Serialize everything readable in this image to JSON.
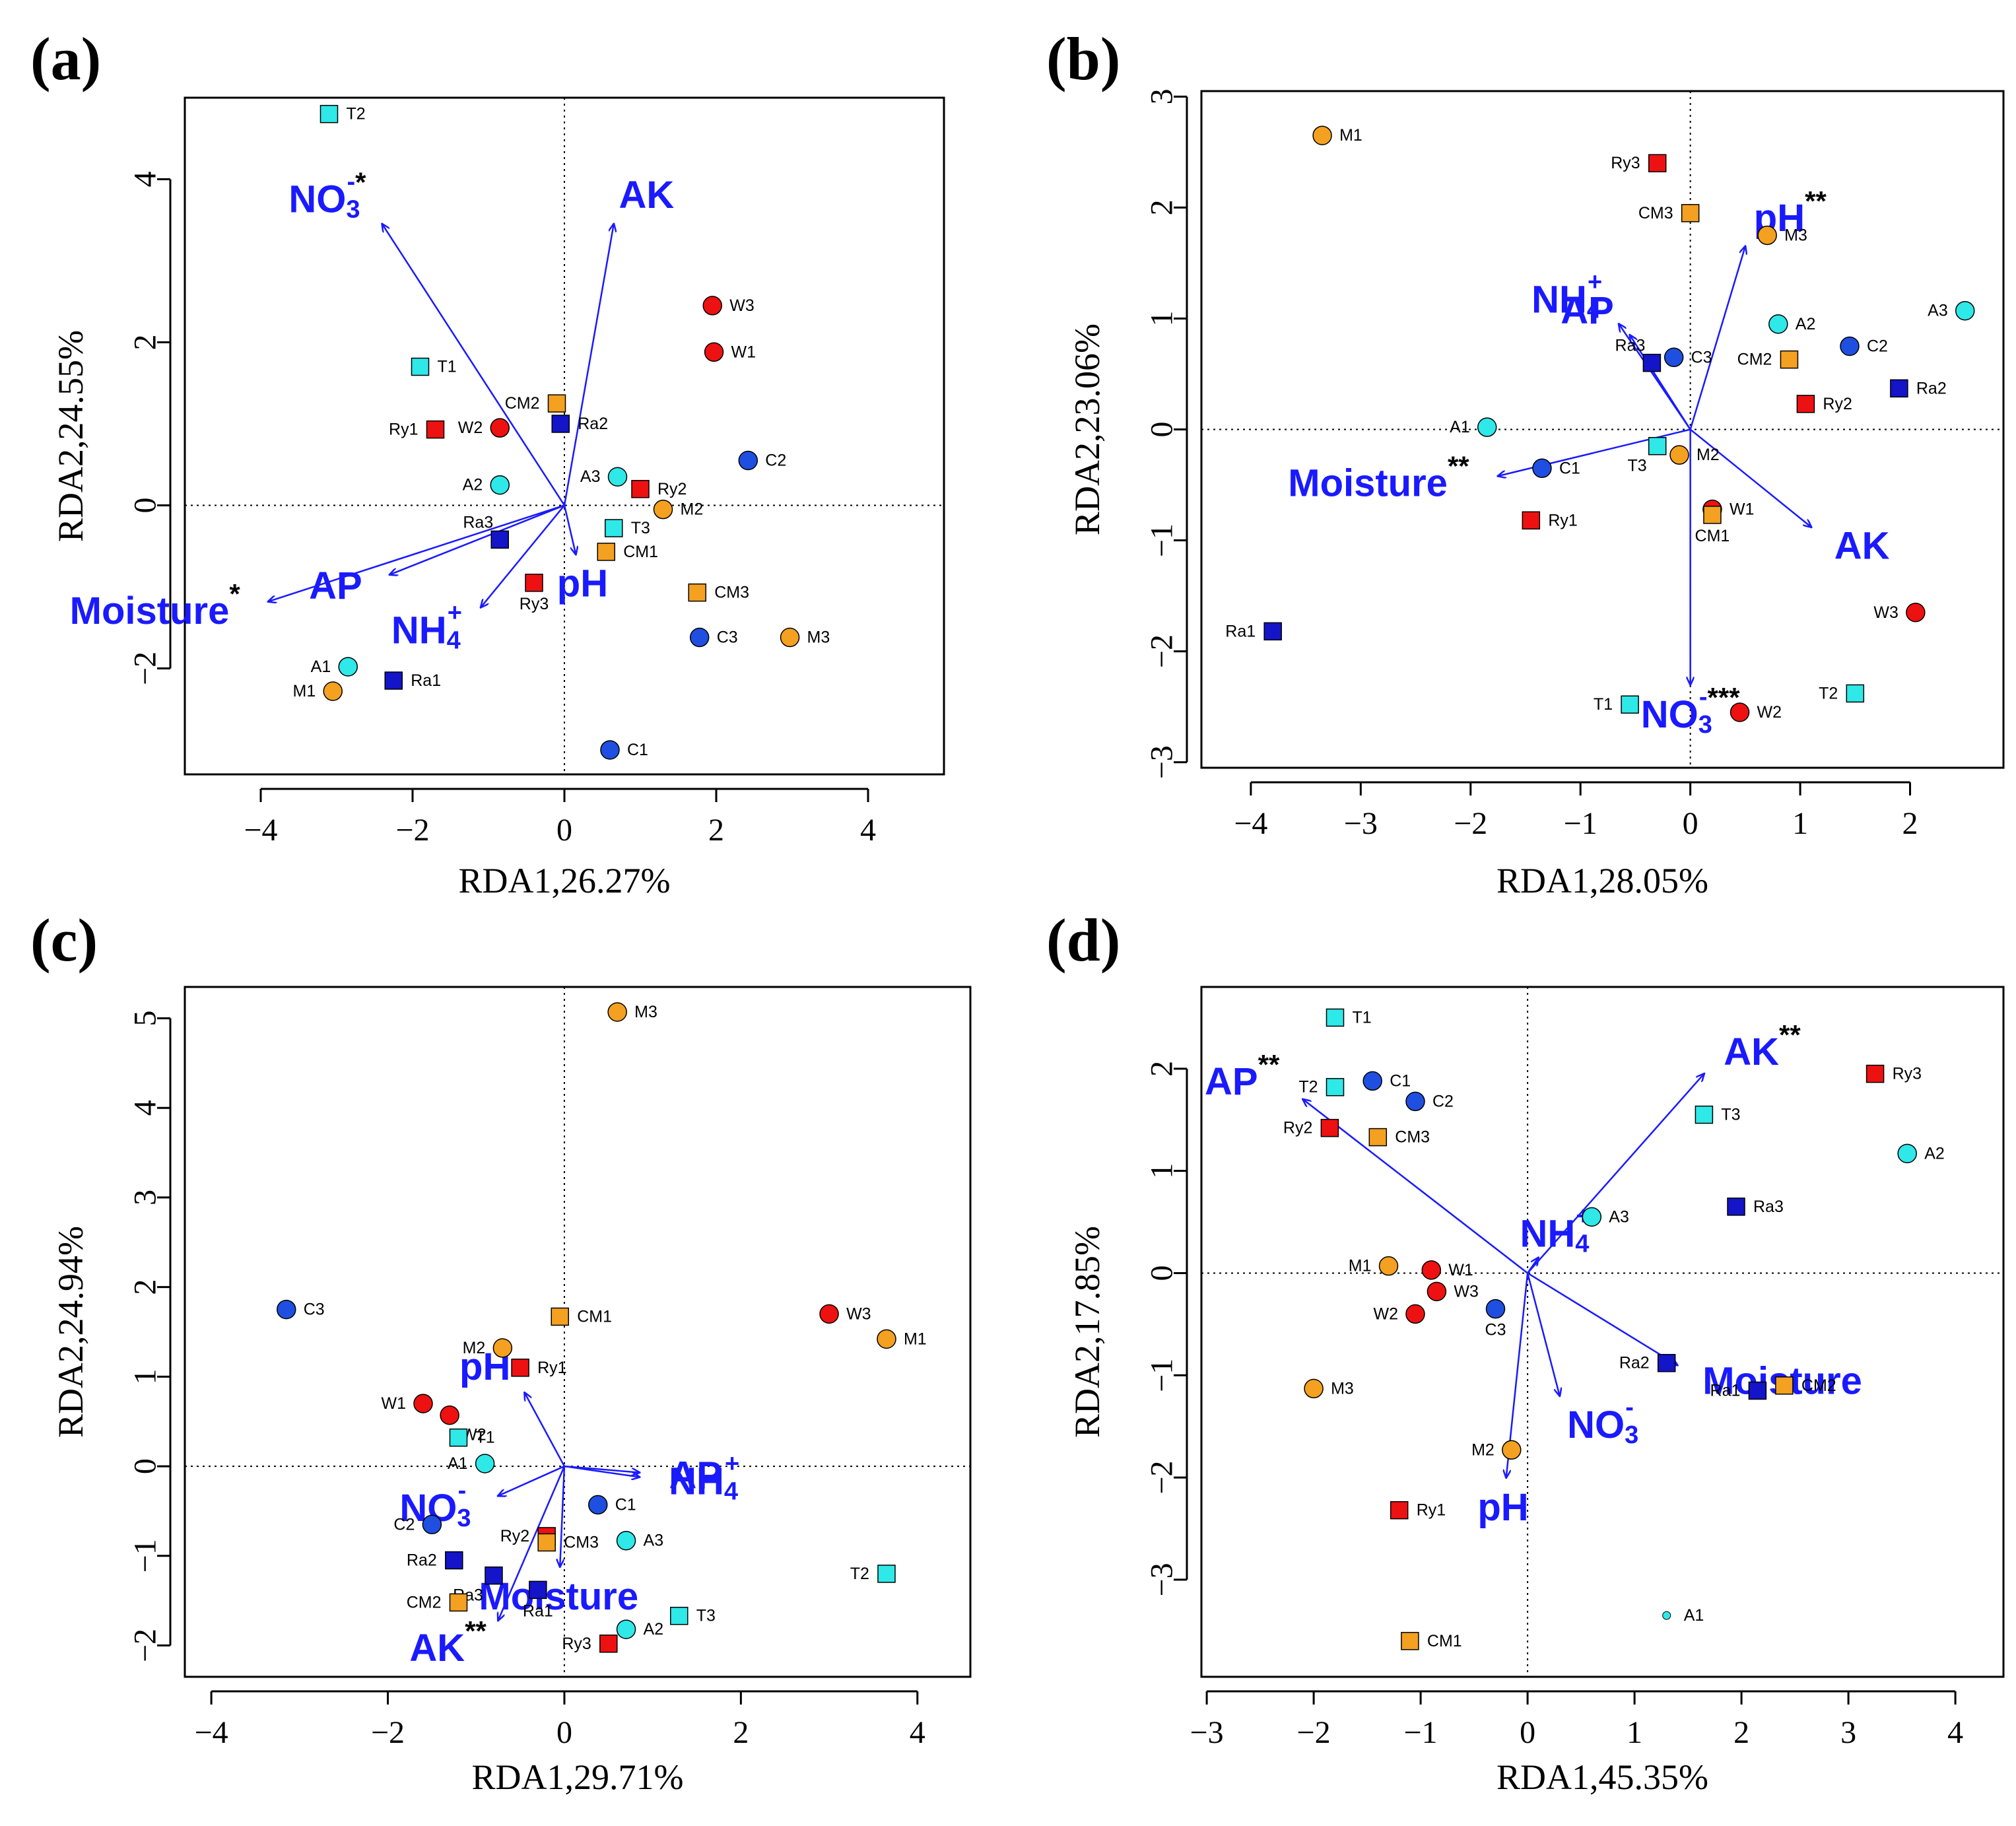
{
  "colors": {
    "frame": "#000000",
    "arrow": "#1a1aff",
    "env_text": "#1a1aff",
    "W": "#ee1111",
    "Ry": "#ee1111",
    "C": "#1f4fe0",
    "Ra": "#1414c8",
    "A": "#2fe8e8",
    "T": "#2fe8e8",
    "M": "#f4a020",
    "CM": "#f4a020"
  },
  "chart_data": [
    {
      "panel": "(a)",
      "type": "scatter",
      "xlabel": "RDA1,26.27%",
      "ylabel": "RDA2,24.55%",
      "xlim": [
        -5,
        5
      ],
      "ylim": [
        -3.3,
        5
      ],
      "xticks": [
        -4,
        -2,
        0,
        2,
        4
      ],
      "yticks": [
        -2,
        0,
        2,
        4
      ],
      "points": [
        {
          "label": "T2",
          "x": -3.1,
          "y": 4.8,
          "shape": "square",
          "group": "T"
        },
        {
          "label": "T1",
          "x": -1.9,
          "y": 1.7,
          "shape": "square",
          "group": "T"
        },
        {
          "label": "T3",
          "x": 0.65,
          "y": -0.28,
          "shape": "square",
          "group": "T"
        },
        {
          "label": "W3",
          "x": 1.95,
          "y": 2.45,
          "shape": "circle",
          "group": "W"
        },
        {
          "label": "W1",
          "x": 1.97,
          "y": 1.88,
          "shape": "circle",
          "group": "W"
        },
        {
          "label": "W2",
          "x": -0.85,
          "y": 0.95,
          "shape": "circle",
          "group": "W"
        },
        {
          "label": "CM2",
          "x": -0.1,
          "y": 1.25,
          "shape": "square",
          "group": "CM"
        },
        {
          "label": "Ra2",
          "x": -0.05,
          "y": 1.0,
          "shape": "square",
          "group": "Ra"
        },
        {
          "label": "Ry1",
          "x": -1.7,
          "y": 0.93,
          "shape": "square",
          "group": "Ry"
        },
        {
          "label": "C2",
          "x": 2.42,
          "y": 0.55,
          "shape": "circle",
          "group": "C"
        },
        {
          "label": "A2",
          "x": -0.85,
          "y": 0.25,
          "shape": "circle",
          "group": "A"
        },
        {
          "label": "A3",
          "x": 0.7,
          "y": 0.35,
          "shape": "circle",
          "group": "A"
        },
        {
          "label": "Ry2",
          "x": 1.0,
          "y": 0.2,
          "shape": "square",
          "group": "Ry"
        },
        {
          "label": "M2",
          "x": 1.3,
          "y": -0.05,
          "shape": "circle",
          "group": "M"
        },
        {
          "label": "Ra3",
          "x": -0.85,
          "y": -0.42,
          "shape": "square",
          "group": "Ra"
        },
        {
          "label": "CM1",
          "x": 0.55,
          "y": -0.57,
          "shape": "square",
          "group": "CM"
        },
        {
          "label": "Ry3",
          "x": -0.4,
          "y": -0.95,
          "shape": "square",
          "group": "Ry"
        },
        {
          "label": "CM3",
          "x": 1.75,
          "y": -1.07,
          "shape": "square",
          "group": "CM"
        },
        {
          "label": "C3",
          "x": 1.78,
          "y": -1.62,
          "shape": "circle",
          "group": "C"
        },
        {
          "label": "M3",
          "x": 2.97,
          "y": -1.62,
          "shape": "circle",
          "group": "M"
        },
        {
          "label": "A1",
          "x": -2.85,
          "y": -1.98,
          "shape": "circle",
          "group": "A"
        },
        {
          "label": "Ra1",
          "x": -2.25,
          "y": -2.15,
          "shape": "square",
          "group": "Ra"
        },
        {
          "label": "M1",
          "x": -3.05,
          "y": -2.28,
          "shape": "circle",
          "group": "M"
        },
        {
          "label": "C1",
          "x": 0.6,
          "y": -3.0,
          "shape": "circle",
          "group": "C"
        }
      ],
      "vectors": [
        {
          "name": "NO",
          "sub": "3",
          "sup": "-",
          "star": "*",
          "x": -2.4,
          "y": 3.45
        },
        {
          "name": "AK",
          "sub": "",
          "sup": "",
          "star": "",
          "x": 0.65,
          "y": 3.45
        },
        {
          "name": "Moisture",
          "sub": "",
          "sup": "",
          "star": "*",
          "x": -3.9,
          "y": -1.18
        },
        {
          "name": "AP",
          "sub": "",
          "sup": "",
          "star": "",
          "x": -2.3,
          "y": -0.85
        },
        {
          "name": "NH",
          "sub": "4",
          "sup": "+",
          "star": "",
          "x": -1.1,
          "y": -1.25
        },
        {
          "name": "pH",
          "sub": "",
          "sup": "",
          "star": "",
          "x": 0.15,
          "y": -0.6
        }
      ]
    },
    {
      "panel": "(b)",
      "type": "scatter",
      "xlabel": "RDA1,28.05%",
      "ylabel": "RDA2,23.06%",
      "xlim": [
        -4.45,
        2.85
      ],
      "ylim": [
        -3.05,
        3.05
      ],
      "xticks": [
        -4,
        -3,
        -2,
        -1,
        0,
        1,
        2
      ],
      "yticks": [
        -3,
        -2,
        -1,
        0,
        1,
        2,
        3
      ],
      "points": [
        {
          "label": "M1",
          "x": -3.35,
          "y": 2.65,
          "shape": "circle",
          "group": "M"
        },
        {
          "label": "Ry3",
          "x": -0.3,
          "y": 2.4,
          "shape": "square",
          "group": "Ry"
        },
        {
          "label": "CM3",
          "x": 0.0,
          "y": 1.95,
          "shape": "square",
          "group": "CM"
        },
        {
          "label": "M3",
          "x": 0.7,
          "y": 1.75,
          "shape": "circle",
          "group": "M"
        },
        {
          "label": "A3",
          "x": 2.5,
          "y": 1.07,
          "shape": "circle",
          "group": "A"
        },
        {
          "label": "A2",
          "x": 0.8,
          "y": 0.95,
          "shape": "circle",
          "group": "A"
        },
        {
          "label": "C2",
          "x": 1.45,
          "y": 0.75,
          "shape": "circle",
          "group": "C"
        },
        {
          "label": "CM2",
          "x": 0.9,
          "y": 0.63,
          "shape": "square",
          "group": "CM"
        },
        {
          "label": "Ra3",
          "x": -0.35,
          "y": 0.6,
          "shape": "square",
          "group": "Ra"
        },
        {
          "label": "C3",
          "x": -0.15,
          "y": 0.65,
          "shape": "circle",
          "group": "C"
        },
        {
          "label": "Ra2",
          "x": 1.9,
          "y": 0.37,
          "shape": "square",
          "group": "Ra"
        },
        {
          "label": "Ry2",
          "x": 1.05,
          "y": 0.23,
          "shape": "square",
          "group": "Ry"
        },
        {
          "label": "A1",
          "x": -1.85,
          "y": 0.02,
          "shape": "circle",
          "group": "A"
        },
        {
          "label": "T3",
          "x": -0.3,
          "y": -0.15,
          "shape": "square",
          "group": "T"
        },
        {
          "label": "M2",
          "x": -0.1,
          "y": -0.23,
          "shape": "circle",
          "group": "M"
        },
        {
          "label": "C1",
          "x": -1.35,
          "y": -0.35,
          "shape": "circle",
          "group": "C"
        },
        {
          "label": "W1",
          "x": 0.2,
          "y": -0.72,
          "shape": "circle",
          "group": "W"
        },
        {
          "label": "CM1",
          "x": 0.2,
          "y": -0.77,
          "shape": "square",
          "group": "CM"
        },
        {
          "label": "Ry1",
          "x": -1.45,
          "y": -0.82,
          "shape": "square",
          "group": "Ry"
        },
        {
          "label": "W3",
          "x": 2.05,
          "y": -1.65,
          "shape": "circle",
          "group": "W"
        },
        {
          "label": "Ra1",
          "x": -3.8,
          "y": -1.82,
          "shape": "square",
          "group": "Ra"
        },
        {
          "label": "T2",
          "x": 1.5,
          "y": -2.38,
          "shape": "square",
          "group": "T"
        },
        {
          "label": "T1",
          "x": -0.55,
          "y": -2.48,
          "shape": "square",
          "group": "T"
        },
        {
          "label": "W2",
          "x": 0.45,
          "y": -2.55,
          "shape": "circle",
          "group": "W"
        }
      ],
      "vectors": [
        {
          "name": "pH",
          "sub": "",
          "sup": "",
          "star": "**",
          "x": 0.5,
          "y": 1.65
        },
        {
          "name": "NH",
          "sub": "4",
          "sup": "+",
          "star": "",
          "x": -0.65,
          "y": 0.95
        },
        {
          "name": "AP",
          "sub": "",
          "sup": "",
          "star": "",
          "x": -0.55,
          "y": 0.85
        },
        {
          "name": "Moisture",
          "sub": "",
          "sup": "",
          "star": "**",
          "x": -1.75,
          "y": -0.42
        },
        {
          "name": "AK",
          "sub": "",
          "sup": "",
          "star": "",
          "x": 1.1,
          "y": -0.88
        },
        {
          "name": "NO",
          "sub": "3",
          "sup": "-",
          "star": "***",
          "x": 0.0,
          "y": -2.3
        }
      ]
    },
    {
      "panel": "(c)",
      "type": "scatter",
      "xlabel": "RDA1,29.71%",
      "ylabel": "RDA2,24.94%",
      "xlim": [
        -4.3,
        4.6
      ],
      "ylim": [
        -2.35,
        5.35
      ],
      "xticks": [
        -4,
        -2,
        0,
        2,
        4
      ],
      "yticks": [
        -2,
        -1,
        0,
        1,
        2,
        3,
        4,
        5
      ],
      "points": [
        {
          "label": "M3",
          "x": 0.6,
          "y": 5.07,
          "shape": "circle",
          "group": "M"
        },
        {
          "label": "C3",
          "x": -3.15,
          "y": 1.75,
          "shape": "circle",
          "group": "C"
        },
        {
          "label": "CM1",
          "x": -0.05,
          "y": 1.67,
          "shape": "square",
          "group": "CM"
        },
        {
          "label": "W3",
          "x": 3.0,
          "y": 1.7,
          "shape": "circle",
          "group": "W"
        },
        {
          "label": "M1",
          "x": 3.65,
          "y": 1.42,
          "shape": "circle",
          "group": "M"
        },
        {
          "label": "M2",
          "x": -0.7,
          "y": 1.32,
          "shape": "circle",
          "group": "M"
        },
        {
          "label": "Ry1",
          "x": -0.5,
          "y": 1.1,
          "shape": "square",
          "group": "Ry"
        },
        {
          "label": "W1",
          "x": -1.6,
          "y": 0.7,
          "shape": "circle",
          "group": "W"
        },
        {
          "label": "W2",
          "x": -1.3,
          "y": 0.57,
          "shape": "circle",
          "group": "W"
        },
        {
          "label": "T1",
          "x": -1.2,
          "y": 0.32,
          "shape": "square",
          "group": "T"
        },
        {
          "label": "A1",
          "x": -0.9,
          "y": 0.03,
          "shape": "circle",
          "group": "A"
        },
        {
          "label": "C1",
          "x": 0.38,
          "y": -0.43,
          "shape": "circle",
          "group": "C"
        },
        {
          "label": "C2",
          "x": -1.5,
          "y": -0.65,
          "shape": "circle",
          "group": "C"
        },
        {
          "label": "Ry2",
          "x": -0.2,
          "y": -0.78,
          "shape": "square",
          "group": "Ry"
        },
        {
          "label": "CM3",
          "x": -0.2,
          "y": -0.85,
          "shape": "square",
          "group": "CM"
        },
        {
          "label": "A3",
          "x": 0.7,
          "y": -0.83,
          "shape": "circle",
          "group": "A"
        },
        {
          "label": "T2",
          "x": 3.65,
          "y": -1.2,
          "shape": "square",
          "group": "T"
        },
        {
          "label": "Ra2",
          "x": -1.25,
          "y": -1.05,
          "shape": "square",
          "group": "Ra"
        },
        {
          "label": "Ra3",
          "x": -0.8,
          "y": -1.22,
          "shape": "square",
          "group": "Ra"
        },
        {
          "label": "Ra1",
          "x": -0.3,
          "y": -1.38,
          "shape": "square",
          "group": "Ra"
        },
        {
          "label": "CM2",
          "x": -1.2,
          "y": -1.52,
          "shape": "square",
          "group": "CM"
        },
        {
          "label": "T3",
          "x": 1.3,
          "y": -1.67,
          "shape": "square",
          "group": "T"
        },
        {
          "label": "A2",
          "x": 0.7,
          "y": -1.82,
          "shape": "circle",
          "group": "A"
        },
        {
          "label": "Ry3",
          "x": 0.5,
          "y": -1.98,
          "shape": "square",
          "group": "Ry"
        }
      ],
      "vectors": [
        {
          "name": "pH",
          "sub": "",
          "sup": "",
          "star": "",
          "x": -0.45,
          "y": 0.82
        },
        {
          "name": "AP",
          "sub": "",
          "sup": "",
          "star": "",
          "x": 0.85,
          "y": -0.07
        },
        {
          "name": "NH",
          "sub": "4",
          "sup": "+",
          "star": "",
          "x": 0.85,
          "y": -0.12
        },
        {
          "name": "NO",
          "sub": "3",
          "sup": "-",
          "star": "",
          "x": -0.75,
          "y": -0.33
        },
        {
          "name": "Moisture",
          "sub": "",
          "sup": "",
          "star": "",
          "x": -0.05,
          "y": -1.12
        },
        {
          "name": "AK",
          "sub": "",
          "sup": "",
          "star": "**",
          "x": -0.75,
          "y": -1.72
        }
      ]
    },
    {
      "panel": "(d)",
      "type": "scatter",
      "xlabel": "RDA1,45.35%",
      "ylabel": "RDA2,17.85%",
      "xlim": [
        -3.05,
        4.45
      ],
      "ylim": [
        -3.95,
        2.8
      ],
      "xticks": [
        -3,
        -2,
        -1,
        0,
        1,
        2,
        3,
        4
      ],
      "yticks": [
        -3,
        -2,
        -1,
        0,
        1,
        2
      ],
      "points": [
        {
          "label": "T1",
          "x": -1.8,
          "y": 2.5,
          "shape": "square",
          "group": "T"
        },
        {
          "label": "C1",
          "x": -1.45,
          "y": 1.88,
          "shape": "circle",
          "group": "C"
        },
        {
          "label": "T2",
          "x": -1.8,
          "y": 1.82,
          "shape": "square",
          "group": "T"
        },
        {
          "label": "C2",
          "x": -1.05,
          "y": 1.68,
          "shape": "circle",
          "group": "C"
        },
        {
          "label": "Ry3",
          "x": 3.25,
          "y": 1.95,
          "shape": "square",
          "group": "Ry"
        },
        {
          "label": "T3",
          "x": 1.65,
          "y": 1.55,
          "shape": "square",
          "group": "T"
        },
        {
          "label": "Ry2",
          "x": -1.85,
          "y": 1.42,
          "shape": "square",
          "group": "Ry"
        },
        {
          "label": "CM3",
          "x": -1.4,
          "y": 1.33,
          "shape": "square",
          "group": "CM"
        },
        {
          "label": "A2",
          "x": 3.55,
          "y": 1.17,
          "shape": "circle",
          "group": "A"
        },
        {
          "label": "Ra3",
          "x": 1.95,
          "y": 0.65,
          "shape": "square",
          "group": "Ra"
        },
        {
          "label": "A3",
          "x": 0.6,
          "y": 0.55,
          "shape": "circle",
          "group": "A"
        },
        {
          "label": "M1",
          "x": -1.3,
          "y": 0.07,
          "shape": "circle",
          "group": "M"
        },
        {
          "label": "W1",
          "x": -0.9,
          "y": 0.03,
          "shape": "circle",
          "group": "W"
        },
        {
          "label": "W3",
          "x": -0.85,
          "y": -0.18,
          "shape": "circle",
          "group": "W"
        },
        {
          "label": "C3",
          "x": -0.3,
          "y": -0.35,
          "shape": "circle",
          "group": "C"
        },
        {
          "label": "W2",
          "x": -1.05,
          "y": -0.4,
          "shape": "circle",
          "group": "W"
        },
        {
          "label": "Ra2",
          "x": 1.3,
          "y": -0.88,
          "shape": "square",
          "group": "Ra"
        },
        {
          "label": "CM2",
          "x": 2.4,
          "y": -1.1,
          "shape": "square",
          "group": "CM"
        },
        {
          "label": "Ra1",
          "x": 2.15,
          "y": -1.15,
          "shape": "square",
          "group": "Ra"
        },
        {
          "label": "M3",
          "x": -2.0,
          "y": -1.13,
          "shape": "circle",
          "group": "M"
        },
        {
          "label": "M2",
          "x": -0.15,
          "y": -1.73,
          "shape": "circle",
          "group": "M"
        },
        {
          "label": "Ry1",
          "x": -1.2,
          "y": -2.32,
          "shape": "square",
          "group": "Ry"
        },
        {
          "label": "A1",
          "x": 1.3,
          "y": -3.35,
          "shape": "dot",
          "group": "A"
        },
        {
          "label": "CM1",
          "x": -1.1,
          "y": -3.6,
          "shape": "square",
          "group": "CM"
        }
      ],
      "vectors": [
        {
          "name": "AK",
          "sub": "",
          "sup": "",
          "star": "**",
          "x": 1.65,
          "y": 1.95
        },
        {
          "name": "AP",
          "sub": "",
          "sup": "",
          "star": "**",
          "x": -2.1,
          "y": 1.7
        },
        {
          "name": "NH",
          "sub": "4",
          "sup": "+",
          "star": "",
          "x": 0.1,
          "y": 0.15
        },
        {
          "name": "Moisture",
          "sub": "",
          "sup": "",
          "star": "",
          "x": 1.4,
          "y": -0.9
        },
        {
          "name": "NO",
          "sub": "3",
          "sup": "-",
          "star": "",
          "x": 0.3,
          "y": -1.2
        },
        {
          "name": "pH",
          "sub": "",
          "sup": "",
          "star": "",
          "x": -0.2,
          "y": -2.0
        }
      ]
    }
  ]
}
